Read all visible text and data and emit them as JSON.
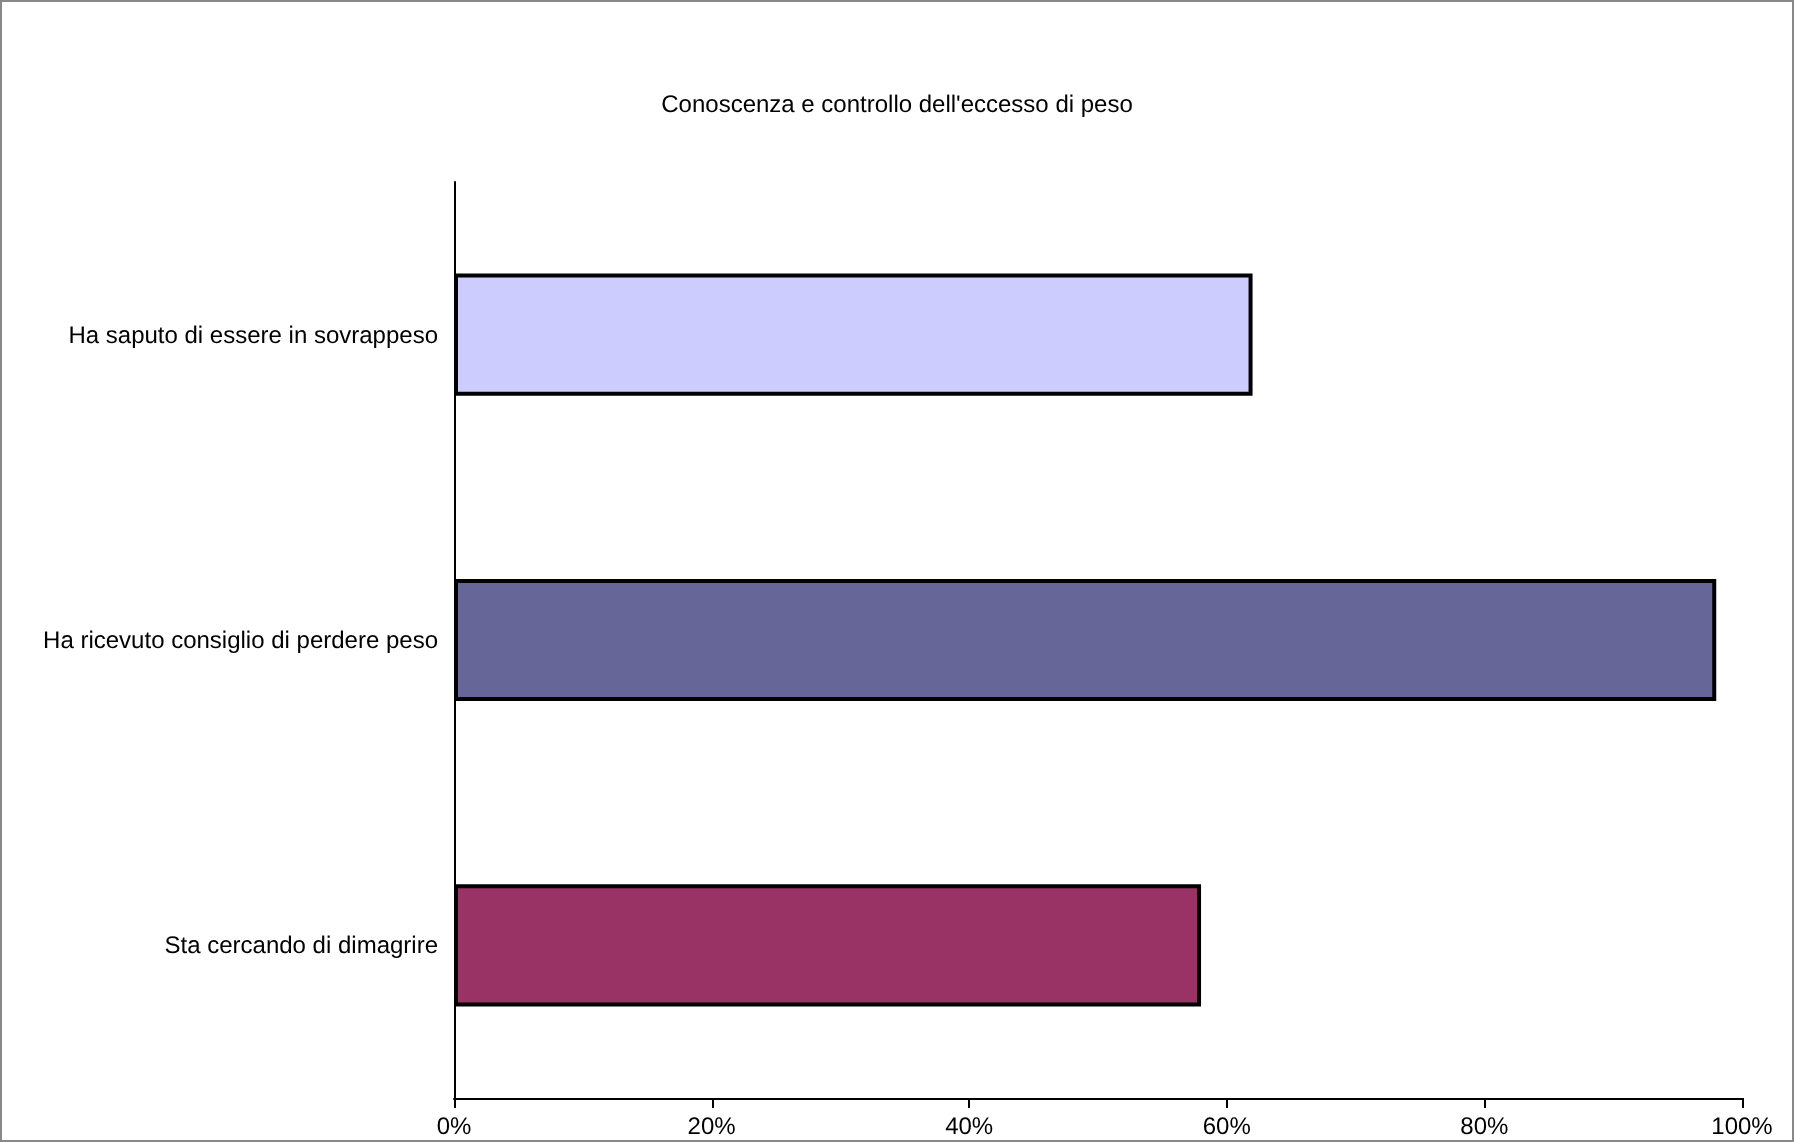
{
  "chart_data": {
    "type": "bar",
    "orientation": "horizontal",
    "title": "Conoscenza e controllo dell'eccesso di peso",
    "categories": [
      "Ha saputo di essere in sovrappeso",
      "Ha ricevuto consiglio di perdere peso",
      "Sta cercando di dimagrire"
    ],
    "values": [
      62,
      98,
      58
    ],
    "colors": [
      "#ccccff",
      "#666699",
      "#993366"
    ],
    "xlim": [
      0,
      100
    ],
    "xticks": [
      {
        "value": 0,
        "label": "0%"
      },
      {
        "value": 20,
        "label": "20%"
      },
      {
        "value": 40,
        "label": "40%"
      },
      {
        "value": 60,
        "label": "60%"
      },
      {
        "value": 80,
        "label": "80%"
      },
      {
        "value": 100,
        "label": "100%"
      }
    ],
    "grid": false
  }
}
